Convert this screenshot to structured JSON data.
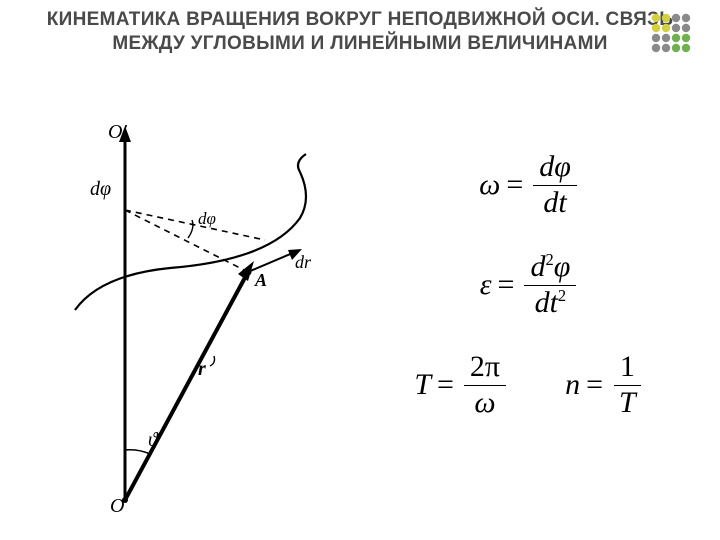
{
  "title": "КИНЕМАТИКА ВРАЩЕНИЯ ВОКРУГ НЕПОДВИЖНОЙ ОСИ. СВЯЗЬ МЕЖДУ УГЛОВЫМИ И ЛИНЕЙНЫМИ ВЕЛИЧИНАМИ",
  "logo": {
    "colors": [
      "#d4cf3f",
      "#8a8a8a",
      "#6fb04f"
    ]
  },
  "diagram": {
    "labels": {
      "Oprime": "O′",
      "O": "O",
      "dphi_vec": "dφ",
      "dphi_angle": "dφ",
      "A": "A",
      "dr": "dr",
      "r": "r",
      "theta": "ϑ"
    },
    "style": {
      "stroke": "#000000",
      "stroke_width": 2,
      "dash": "6,5",
      "label_font": "italic 18px Times New Roman"
    }
  },
  "formulas": {
    "omega": {
      "lhs": "ω",
      "num": "dφ",
      "den": "dt"
    },
    "epsilon": {
      "lhs": "ε",
      "num_base": "d",
      "num_sup": "2",
      "num_tail": "φ",
      "den_base": "dt",
      "den_sup": "2"
    },
    "period": {
      "lhs": "T",
      "num": "2π",
      "den": "ω"
    },
    "freq": {
      "lhs": "n",
      "num": "1",
      "den": "T"
    },
    "font_size": 30,
    "color": "#000000"
  }
}
